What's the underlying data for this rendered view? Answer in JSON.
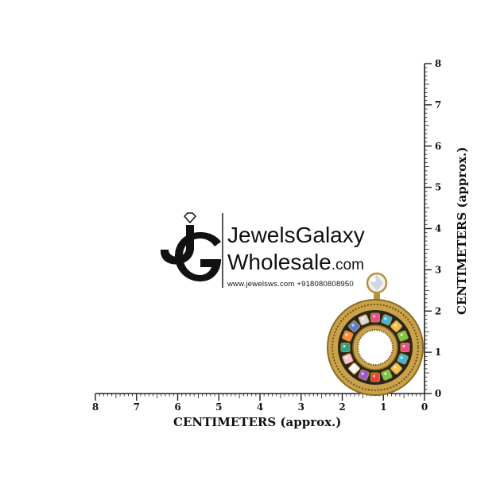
{
  "axes": {
    "x_title": "CENTIMETERS (approx.)",
    "y_title": "CENTIMETERS (approx.)",
    "x_ticks": [
      "8",
      "7",
      "6",
      "5",
      "4",
      "3",
      "2",
      "1",
      "0"
    ],
    "y_ticks": [
      "0",
      "1",
      "2",
      "3",
      "4",
      "5",
      "6",
      "7",
      "8"
    ]
  },
  "watermark": {
    "brand_line1": "JewelsGalaxy",
    "brand_line2": "Wholesale",
    "brand_suffix": ".com",
    "contact": "www.jewelsws.com +918080808950"
  },
  "product": {
    "type": "earring",
    "metal_color": "#b8923a",
    "stone_colors": [
      "#e84d8a",
      "#3fb6d8",
      "#f2c14e",
      "#7ac943",
      "#e8442f",
      "#9b59d0",
      "#f5f5f5",
      "#f7c6d9",
      "#2aa37a",
      "#ff8a3d",
      "#5a7fd6",
      "#d9d9d9"
    ]
  }
}
